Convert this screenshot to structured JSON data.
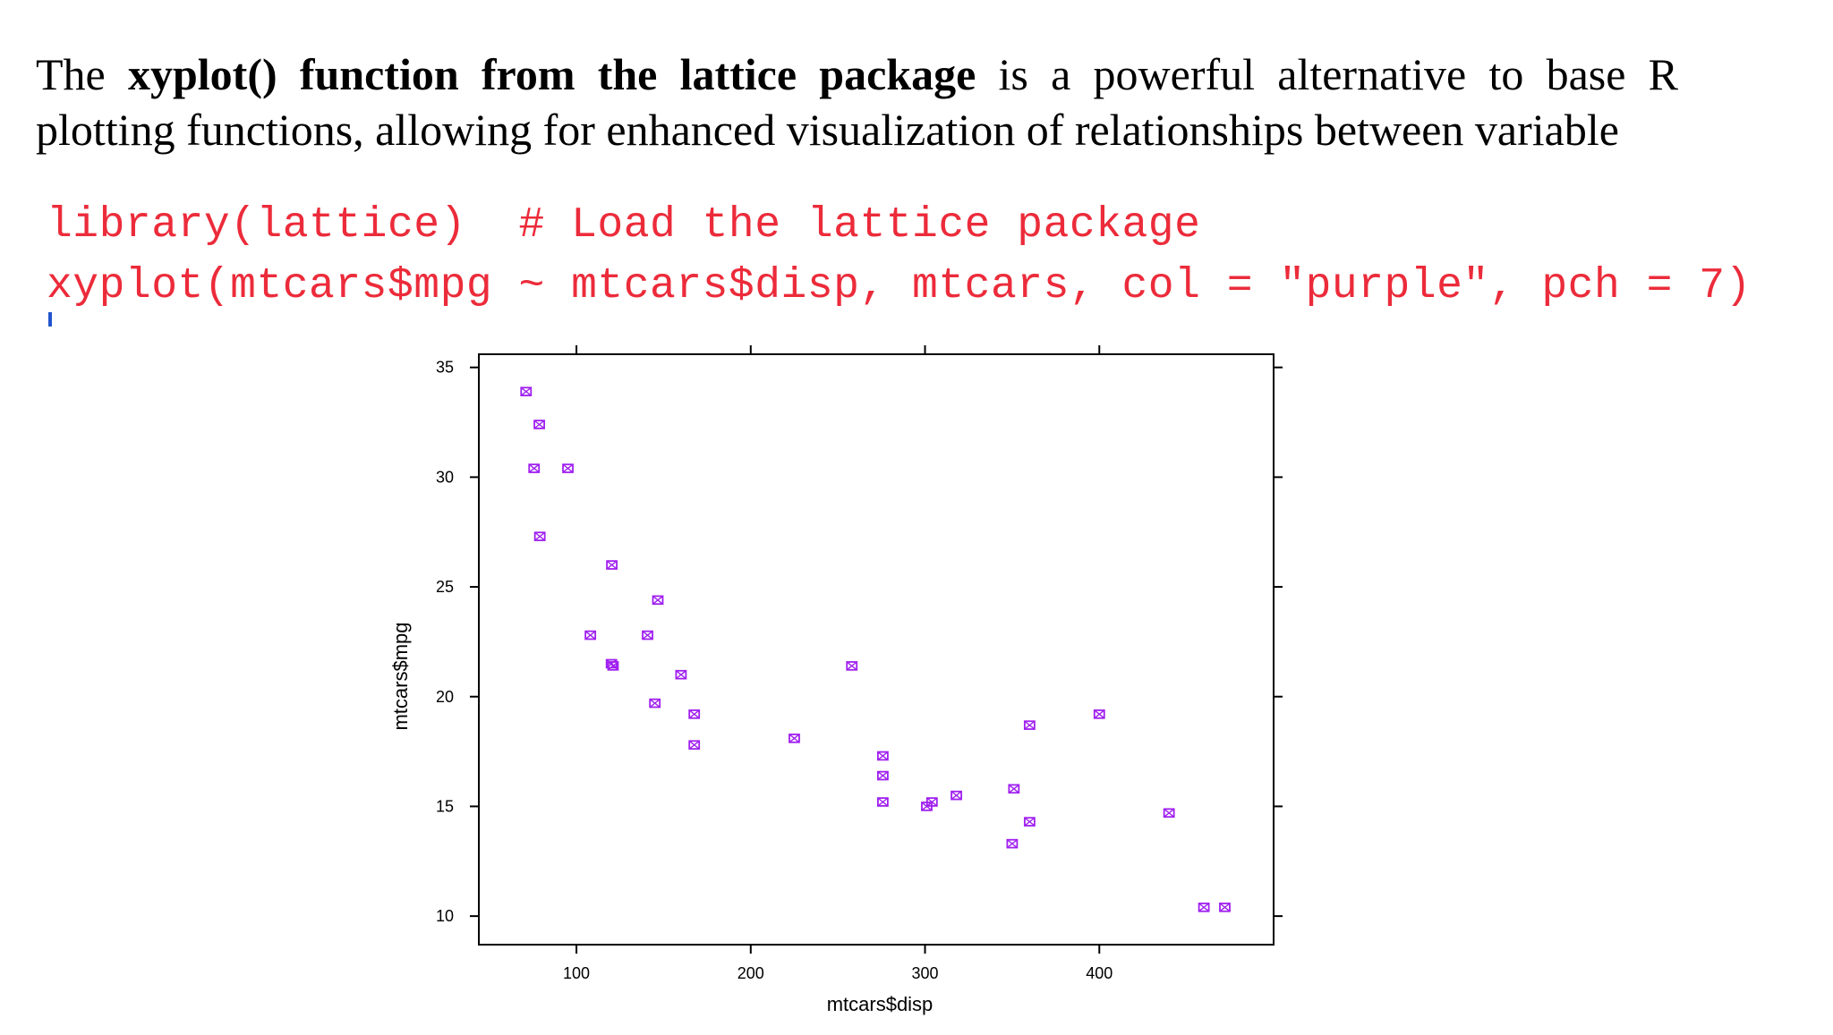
{
  "intro": {
    "prefix": "The ",
    "bold": "xyplot() function from the lattice package",
    "suffix": " is a powerful alternative to base R plotting functions, allowing for enhanced visualization of relationships between variable"
  },
  "code": {
    "line1": "library(lattice)  # Load the lattice package",
    "line2": "xyplot(mtcars$mpg ~ mtcars$disp, mtcars, col = \"purple\", pch = 7)"
  },
  "colors": {
    "code_text": "#ec2b3a",
    "point": "#a020f0",
    "axis": "#000000"
  },
  "chart_data": {
    "type": "scatter",
    "title": "",
    "xlabel": "mtcars$disp",
    "ylabel": "mtcars$mpg",
    "xlim": [
      44,
      500
    ],
    "ylim": [
      8.7,
      35.6
    ],
    "x_ticks": [
      100,
      200,
      300,
      400
    ],
    "y_ticks": [
      10,
      15,
      20,
      25,
      30,
      35
    ],
    "grid": false,
    "marker": "pch 7 (square with X)",
    "point_color": "purple",
    "points": [
      {
        "x": 71.1,
        "y": 33.9
      },
      {
        "x": 78.7,
        "y": 32.4
      },
      {
        "x": 75.7,
        "y": 30.4
      },
      {
        "x": 95.1,
        "y": 30.4
      },
      {
        "x": 79.0,
        "y": 27.3
      },
      {
        "x": 120.3,
        "y": 26.0
      },
      {
        "x": 146.7,
        "y": 24.4
      },
      {
        "x": 108.0,
        "y": 22.8
      },
      {
        "x": 140.8,
        "y": 22.8
      },
      {
        "x": 121.0,
        "y": 21.4
      },
      {
        "x": 120.1,
        "y": 21.5
      },
      {
        "x": 258.0,
        "y": 21.4
      },
      {
        "x": 160.0,
        "y": 21.0
      },
      {
        "x": 145.0,
        "y": 19.7
      },
      {
        "x": 167.6,
        "y": 19.2
      },
      {
        "x": 400.0,
        "y": 19.2
      },
      {
        "x": 360.0,
        "y": 18.7
      },
      {
        "x": 225.0,
        "y": 18.1
      },
      {
        "x": 167.6,
        "y": 17.8
      },
      {
        "x": 275.8,
        "y": 17.3
      },
      {
        "x": 275.8,
        "y": 16.4
      },
      {
        "x": 351.0,
        "y": 15.8
      },
      {
        "x": 318.0,
        "y": 15.5
      },
      {
        "x": 275.8,
        "y": 15.2
      },
      {
        "x": 304.0,
        "y": 15.2
      },
      {
        "x": 301.0,
        "y": 15.0
      },
      {
        "x": 440.0,
        "y": 14.7
      },
      {
        "x": 360.0,
        "y": 14.3
      },
      {
        "x": 350.0,
        "y": 13.3
      },
      {
        "x": 460.0,
        "y": 10.4
      },
      {
        "x": 472.0,
        "y": 10.4
      }
    ]
  }
}
